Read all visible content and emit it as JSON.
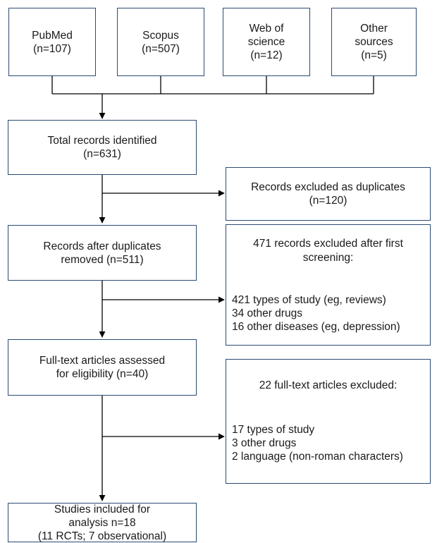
{
  "sources": [
    {
      "name": "PubMed",
      "count": "(n=107)"
    },
    {
      "name": "Scopus",
      "count": "(n=507)"
    },
    {
      "name_line1": "Web of",
      "name_line2": "science",
      "count": "(n=12)"
    },
    {
      "name_line1": "Other",
      "name_line2": "sources",
      "count": "(n=5)"
    }
  ],
  "total": {
    "line1": "Total records identified",
    "line2": "(n=631)"
  },
  "duplicates_excluded": {
    "line1": "Records excluded as duplicates",
    "line2": "(n=120)"
  },
  "after_duplicates": {
    "line1": "Records after duplicates",
    "line2": "removed (n=511)"
  },
  "first_screening": {
    "heading_line1": "471 records excluded after first",
    "heading_line2": "screening:",
    "items": [
      "421 types of study (eg, reviews)",
      "34 other drugs",
      "16 other diseases (eg, depression)"
    ]
  },
  "full_text": {
    "line1": "Full-text articles assessed",
    "line2": "for eligibility (n=40)"
  },
  "full_text_excluded": {
    "heading": "22 full-text articles excluded:",
    "items": [
      "17 types of study",
      "3 other drugs",
      "2 language (non-roman characters)"
    ]
  },
  "included": {
    "line1": "Studies included for",
    "line2": "analysis n=18",
    "line3": "(11 RCTs; 7 observational)"
  },
  "colors": {
    "box_border": "#2b4a73",
    "line": "#000000"
  }
}
